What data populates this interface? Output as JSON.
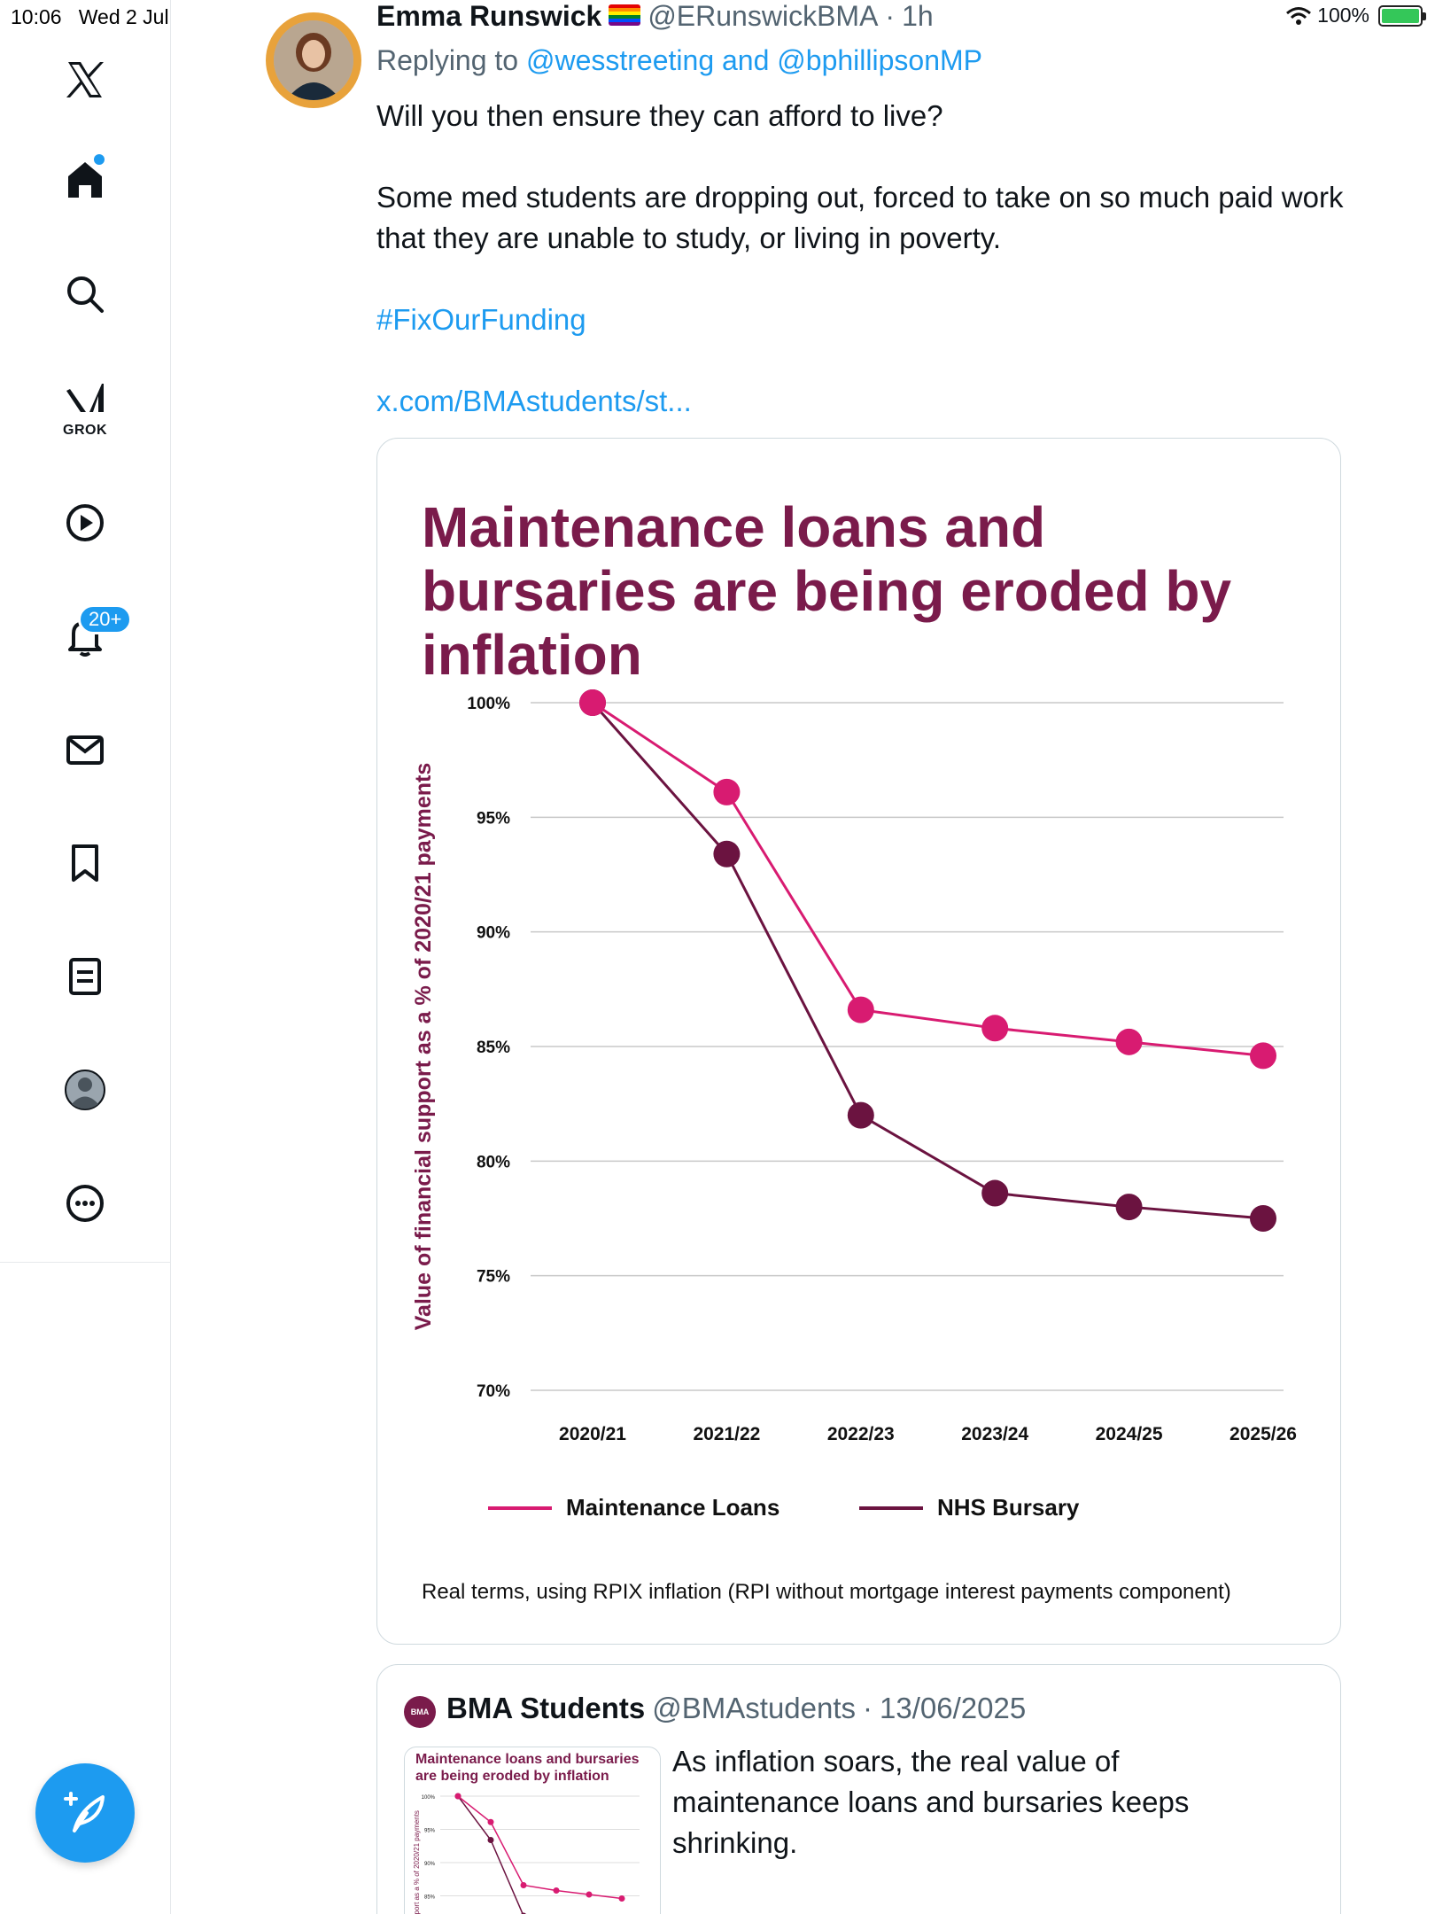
{
  "status_bar": {
    "time": "10:06",
    "date": "Wed 2 Jul",
    "battery": "100%",
    "battery_level": 1.0
  },
  "sidebar": {
    "items": [
      {
        "name": "x-logo-icon"
      },
      {
        "name": "home-icon"
      },
      {
        "name": "search-icon"
      },
      {
        "name": "grok-icon",
        "label": "GROK"
      },
      {
        "name": "video-icon"
      },
      {
        "name": "notifications-icon",
        "badge": "20+"
      },
      {
        "name": "messages-icon"
      },
      {
        "name": "bookmarks-icon"
      },
      {
        "name": "lists-icon"
      },
      {
        "name": "profile-icon"
      },
      {
        "name": "more-icon"
      }
    ],
    "compose_icon": "feather-icon",
    "accent": "#1d9bf0"
  },
  "tweet": {
    "author_name": "Emma Runswick",
    "author_flag": "🏳️‍🌈",
    "handle": "@ERunswickBMA",
    "separator": "·",
    "time": "1h",
    "replying_prefix": "Replying to",
    "replying_to": "@wesstreeting and @bphillipsonMP",
    "text_1": "Will you then ensure they can afford to live?",
    "text_2": "Some med students are dropping out, forced to take on so much paid work that they are unable to study, or living in poverty.",
    "hashtag": "#FixOurFunding",
    "link": "x.com/BMAstudents/st..."
  },
  "chart_data": {
    "type": "line",
    "title": "Maintenance loans and bursaries are being eroded by inflation",
    "ylabel": "Value of financial support as a % of 2020/21 payments",
    "xlabel": "",
    "categories": [
      "2020/21",
      "2021/22",
      "2022/23",
      "2023/24",
      "2024/25",
      "2025/26"
    ],
    "ylim": [
      70,
      100
    ],
    "yticks": [
      "100%",
      "95%",
      "90%",
      "85%",
      "80%",
      "75%",
      "70%"
    ],
    "ytick_values": [
      100,
      95,
      90,
      85,
      80,
      75,
      70
    ],
    "grid": "horizontal",
    "legend": "bottom",
    "series": [
      {
        "name": "Maintenance Loans",
        "color": "#d81b71",
        "values": [
          100,
          96.1,
          86.6,
          85.8,
          85.2,
          84.6
        ]
      },
      {
        "name": "NHS Bursary",
        "color": "#6b1340",
        "values": [
          100,
          93.4,
          82.0,
          78.6,
          78.0,
          77.5
        ]
      }
    ],
    "footnote": "Real terms, using RPIX inflation (RPI without mortgage interest payments component)",
    "title_color": "#7a1b4b"
  },
  "quote": {
    "name": "BMA Students",
    "handle": "@BMAstudents",
    "separator": "·",
    "date": "13/06/2025",
    "avatar_text": "BMA",
    "thumb_title": "Maintenance loans and bursaries are being eroded by inflation",
    "text": "As inflation soars, the real value of maintenance loans and bursaries keeps shrinking."
  }
}
